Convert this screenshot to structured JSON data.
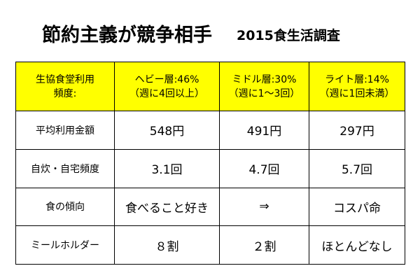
{
  "header": {
    "title": "節約主義が競争相手",
    "subtitle": "2015食生活調査"
  },
  "table": {
    "header": [
      [
        "生協食堂利用",
        "頻度:"
      ],
      [
        "ヘビー層:46%",
        "（週に4回以上）"
      ],
      [
        "ミドル層:30%",
        "（週に1〜3回）"
      ],
      [
        "ライト層:14%",
        "（週に1回未満）"
      ]
    ],
    "rows": [
      [
        "平均利用金額",
        "548円",
        "491円",
        "297円"
      ],
      [
        "自炊・自宅頻度",
        "3.1回",
        "4.7回",
        "5.7回"
      ],
      [
        "食の傾向",
        "食べること好き",
        "⇒",
        "コスパ命"
      ],
      [
        "ミールホルダー",
        "８割",
        "２割",
        "ほとんどなし"
      ]
    ]
  }
}
